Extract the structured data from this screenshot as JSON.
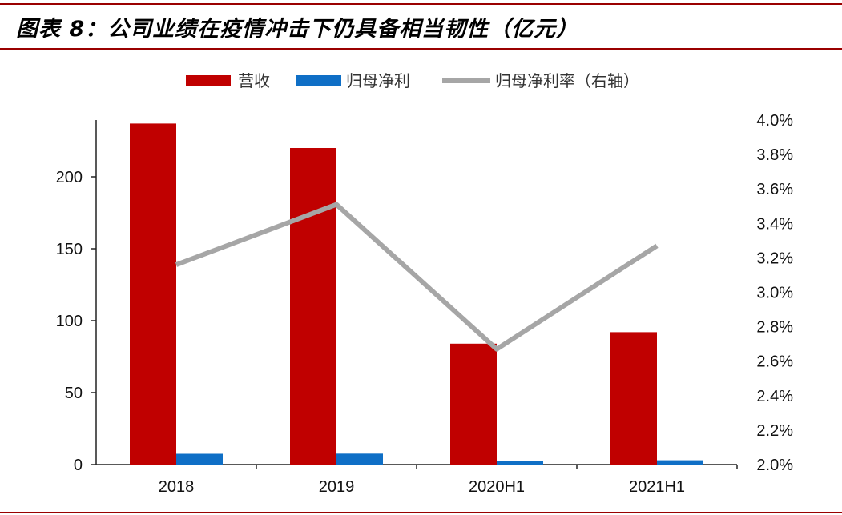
{
  "title": "图表 8：公司业绩在疫情冲击下仍具备相当韧性（亿元）",
  "colors": {
    "revenue": "#c00000",
    "net_profit": "#0f6fc6",
    "margin": "#a6a6a6",
    "accent": "#9a0000"
  },
  "chart_data": {
    "type": "bar",
    "title": "图表 8：公司业绩在疫情冲击下仍具备相当韧性（亿元）",
    "categories": [
      "2018",
      "2019",
      "2020H1",
      "2021H1"
    ],
    "series": [
      {
        "name": "营收",
        "type": "bar",
        "axis": "left",
        "values": [
          237,
          220,
          84,
          92
        ]
      },
      {
        "name": "归母净利",
        "type": "bar",
        "axis": "left",
        "values": [
          7.5,
          7.6,
          2.3,
          3.0
        ]
      },
      {
        "name": "归母净利率（右轴）",
        "type": "line",
        "axis": "right",
        "values": [
          3.16,
          3.51,
          2.67,
          3.27
        ]
      }
    ],
    "y_left": {
      "min": 0,
      "max": 240,
      "ticks": [
        "0",
        "50",
        "100",
        "150",
        "200"
      ]
    },
    "y_right": {
      "min": 2.0,
      "max": 4.0,
      "ticks": [
        "2.0%",
        "2.2%",
        "2.4%",
        "2.6%",
        "2.8%",
        "3.0%",
        "3.2%",
        "3.4%",
        "3.6%",
        "3.8%",
        "4.0%"
      ]
    },
    "grid": false,
    "legend": "top-center"
  }
}
